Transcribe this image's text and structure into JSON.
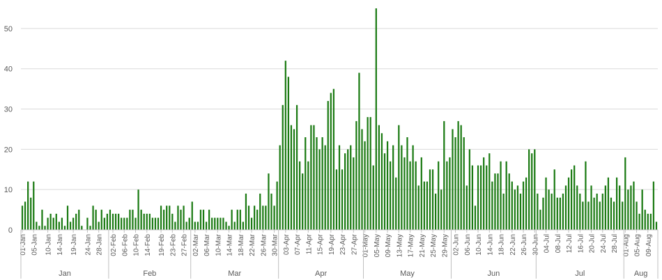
{
  "chart_data": {
    "type": "bar",
    "title": "",
    "xlabel": "",
    "ylabel": "",
    "ylim": [
      0,
      55
    ],
    "yticks": [
      0,
      10,
      20,
      30,
      40,
      50
    ],
    "grid": true,
    "legend": "none",
    "bar_color": "#1a7a12",
    "start_date": "2020-01-01",
    "values": [
      6,
      7,
      12,
      8,
      12,
      2,
      1,
      5,
      1,
      3,
      4,
      3,
      4,
      2,
      3,
      1,
      6,
      2,
      3,
      4,
      5,
      1,
      0,
      3,
      1,
      6,
      5,
      2,
      5,
      3,
      4,
      5,
      4,
      4,
      4,
      3,
      3,
      3,
      5,
      5,
      3,
      10,
      5,
      4,
      4,
      4,
      3,
      3,
      3,
      6,
      5,
      6,
      6,
      4,
      2,
      6,
      5,
      6,
      2,
      3,
      7,
      2,
      2,
      5,
      5,
      2,
      5,
      3,
      3,
      3,
      3,
      3,
      2,
      1,
      5,
      2,
      5,
      5,
      2,
      9,
      6,
      3,
      6,
      5,
      9,
      6,
      6,
      14,
      9,
      6,
      12,
      21,
      31,
      42,
      38,
      26,
      25,
      31,
      17,
      14,
      23,
      17,
      26,
      26,
      23,
      20,
      23,
      21,
      32,
      34,
      35,
      15,
      21,
      15,
      19,
      20,
      21,
      18,
      27,
      39,
      25,
      22,
      28,
      28,
      16,
      55,
      26,
      24,
      19,
      22,
      17,
      21,
      13,
      26,
      21,
      18,
      23,
      17,
      21,
      17,
      11,
      18,
      12,
      12,
      15,
      15,
      9,
      17,
      10,
      27,
      17,
      18,
      25,
      23,
      27,
      26,
      23,
      11,
      20,
      16,
      6,
      16,
      16,
      18,
      16,
      19,
      12,
      14,
      14,
      17,
      9,
      17,
      14,
      12,
      10,
      11,
      9,
      12,
      13,
      20,
      19,
      20,
      9,
      5,
      8,
      13,
      10,
      9,
      15,
      8,
      8,
      9,
      11,
      13,
      15,
      16,
      11,
      9,
      7,
      17,
      7,
      11,
      8,
      9,
      7,
      9,
      11,
      13,
      8,
      7,
      13,
      11,
      7,
      18,
      10,
      11,
      12,
      7,
      4,
      10,
      5,
      4,
      4,
      12,
      2
    ],
    "x_tick_labels": [
      "01-Jan",
      "05-Jan",
      "10-Jan",
      "14-Jan",
      "19-Jan",
      "24-Jan",
      "28-Jan",
      "02-Feb",
      "06-Feb",
      "10-Feb",
      "14-Feb",
      "19-Feb",
      "23-Feb",
      "27-Feb",
      "02-Mar",
      "06-Mar",
      "10-Mar",
      "14-Mar",
      "18-Mar",
      "22-Mar",
      "26-Mar",
      "30-Mar",
      "03-Apr",
      "07-Apr",
      "11-Apr",
      "15-Apr",
      "19-Apr",
      "23-Apr",
      "27-Apr",
      "01-May",
      "05-May",
      "09-May",
      "13-May",
      "17-May",
      "21-May",
      "25-May",
      "29-May",
      "02-Jun",
      "06-Jun",
      "10-Jun",
      "14-Jun",
      "18-Jun",
      "22-Jun",
      "26-Jun",
      "30-Jun",
      "04-Jul",
      "08-Jul",
      "12-Jul",
      "16-Jul",
      "20-Jul",
      "24-Jul",
      "28-Jul",
      "01-Aug",
      "05-Aug",
      "09-Aug"
    ],
    "x_tick_days": [
      0,
      4,
      9,
      13,
      18,
      23,
      27,
      32,
      36,
      40,
      44,
      49,
      53,
      57,
      61,
      65,
      69,
      73,
      77,
      81,
      85,
      89,
      93,
      97,
      101,
      105,
      109,
      113,
      117,
      121,
      125,
      129,
      133,
      137,
      141,
      145,
      149,
      153,
      157,
      161,
      165,
      169,
      173,
      177,
      181,
      185,
      189,
      193,
      197,
      201,
      205,
      209,
      213,
      217,
      221
    ],
    "months": [
      {
        "label": "Jan",
        "start": 0,
        "end": 31
      },
      {
        "label": "Feb",
        "start": 31,
        "end": 60
      },
      {
        "label": "Mar",
        "start": 60,
        "end": 91
      },
      {
        "label": "Apr",
        "start": 91,
        "end": 121
      },
      {
        "label": "May",
        "start": 121,
        "end": 152
      },
      {
        "label": "Jun",
        "start": 152,
        "end": 182
      },
      {
        "label": "Jul",
        "start": 182,
        "end": 213
      },
      {
        "label": "Aug",
        "start": 213,
        "end": 225
      }
    ]
  }
}
